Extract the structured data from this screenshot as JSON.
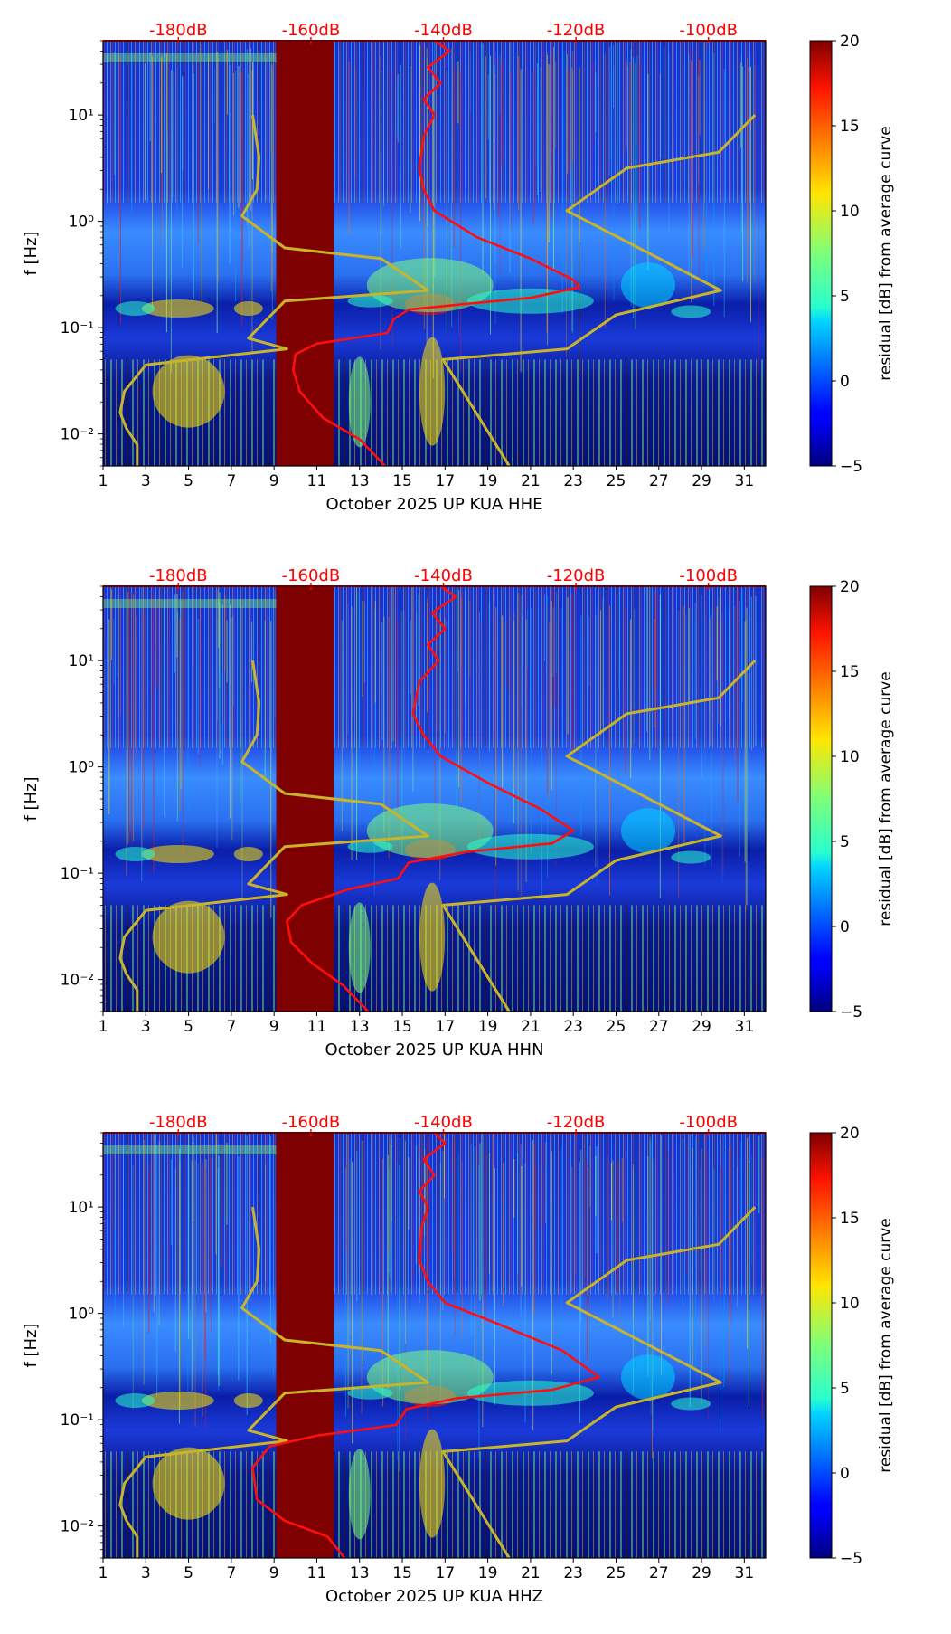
{
  "chart_data": [
    {
      "type": "heatmap",
      "component": "HHE",
      "xlabel": "October 2025 UP KUA  HHE",
      "ylabel": "f [Hz]",
      "x_ticks": [
        "1",
        "3",
        "5",
        "7",
        "9",
        "11",
        "13",
        "15",
        "17",
        "19",
        "21",
        "23",
        "25",
        "27",
        "29",
        "31"
      ],
      "xlim": [
        1,
        32
      ],
      "y_ticks": [
        "10⁻²",
        "10⁻¹",
        "10⁰",
        "10¹"
      ],
      "ylim_hz": [
        0.005,
        50
      ],
      "db_axis_labels": [
        "-180dB",
        "-160dB",
        "-140dB",
        "-120dB",
        "-100dB"
      ],
      "db_axis_values": [
        -180,
        -160,
        -140,
        -120,
        -100
      ],
      "colorbar": {
        "label": "residual [dB] from average curve",
        "ticks": [
          "−5",
          "0",
          "5",
          "10",
          "15",
          "20"
        ],
        "range": [
          -5,
          20
        ]
      },
      "data_gap_days": [
        9.1,
        11.8
      ],
      "red_curve_day_logf": [
        [
          16.5,
          1.7
        ],
        [
          17.2,
          1.6
        ],
        [
          16.2,
          1.45
        ],
        [
          16.8,
          1.3
        ],
        [
          16,
          1.15
        ],
        [
          16.5,
          1
        ],
        [
          16,
          0.8
        ],
        [
          15.8,
          0.5
        ],
        [
          16,
          0.3
        ],
        [
          16.5,
          0.1
        ],
        [
          18.5,
          -0.15
        ],
        [
          21,
          -0.35
        ],
        [
          23,
          -0.55
        ],
        [
          23.3,
          -0.62
        ],
        [
          21,
          -0.72
        ],
        [
          17.8,
          -0.78
        ],
        [
          15.3,
          -0.83
        ],
        [
          14.6,
          -0.92
        ],
        [
          14.3,
          -1.05
        ],
        [
          11,
          -1.15
        ],
        [
          10,
          -1.25
        ],
        [
          9.9,
          -1.4
        ],
        [
          10.2,
          -1.6
        ],
        [
          11.3,
          -1.85
        ],
        [
          13,
          -2.05
        ],
        [
          14.2,
          -2.3
        ]
      ],
      "yellow_curve_day_logf": [
        [
          8,
          1
        ],
        [
          8.3,
          0.6
        ],
        [
          8.2,
          0.3
        ],
        [
          7.5,
          0.05
        ],
        [
          9.5,
          -0.25
        ],
        [
          14,
          -0.35
        ],
        [
          16.2,
          -0.65
        ],
        [
          9.5,
          -0.75
        ],
        [
          7.8,
          -1.1
        ],
        [
          9.6,
          -1.2
        ],
        [
          3,
          -1.35
        ],
        [
          2,
          -1.6
        ],
        [
          1.8,
          -1.8
        ],
        [
          2.1,
          -1.95
        ],
        [
          2.6,
          -2.1
        ],
        [
          2.6,
          -2.3
        ]
      ],
      "yellow_right_day_logf": [
        [
          31.5,
          1
        ],
        [
          29.8,
          0.65
        ],
        [
          25.5,
          0.5
        ],
        [
          22.7,
          0.1
        ],
        [
          29.9,
          -0.65
        ],
        [
          25,
          -0.88
        ],
        [
          22.7,
          -1.2
        ],
        [
          16.9,
          -1.3
        ],
        [
          20,
          -2.3
        ]
      ]
    },
    {
      "type": "heatmap",
      "component": "HHN",
      "xlabel": "October 2025 UP KUA  HHN",
      "ylabel": "f [Hz]",
      "x_ticks": [
        "1",
        "3",
        "5",
        "7",
        "9",
        "11",
        "13",
        "15",
        "17",
        "19",
        "21",
        "23",
        "25",
        "27",
        "29",
        "31"
      ],
      "xlim": [
        1,
        32
      ],
      "y_ticks": [
        "10⁻²",
        "10⁻¹",
        "10⁰",
        "10¹"
      ],
      "ylim_hz": [
        0.005,
        50
      ],
      "db_axis_labels": [
        "-180dB",
        "-160dB",
        "-140dB",
        "-120dB",
        "-100dB"
      ],
      "db_axis_values": [
        -180,
        -160,
        -140,
        -120,
        -100
      ],
      "colorbar": {
        "label": "residual [dB] from average curve",
        "ticks": [
          "−5",
          "0",
          "5",
          "10",
          "15",
          "20"
        ],
        "range": [
          -5,
          20
        ]
      },
      "data_gap_days": [
        9.1,
        11.8
      ],
      "red_curve_day_logf": [
        [
          16.8,
          1.7
        ],
        [
          17.5,
          1.6
        ],
        [
          16.4,
          1.45
        ],
        [
          17,
          1.3
        ],
        [
          16.2,
          1.15
        ],
        [
          16.7,
          1
        ],
        [
          15.8,
          0.8
        ],
        [
          15.5,
          0.5
        ],
        [
          16,
          0.3
        ],
        [
          16.8,
          0.1
        ],
        [
          19,
          -0.15
        ],
        [
          21.5,
          -0.4
        ],
        [
          23,
          -0.6
        ],
        [
          22,
          -0.72
        ],
        [
          18,
          -0.8
        ],
        [
          15.3,
          -0.9
        ],
        [
          14.8,
          -1.05
        ],
        [
          12.5,
          -1.15
        ],
        [
          10.3,
          -1.3
        ],
        [
          9.6,
          -1.45
        ],
        [
          9.8,
          -1.65
        ],
        [
          10.8,
          -1.85
        ],
        [
          12.2,
          -2.05
        ],
        [
          13.4,
          -2.3
        ]
      ],
      "yellow_curve_day_logf": [
        [
          8,
          1
        ],
        [
          8.3,
          0.6
        ],
        [
          8.2,
          0.3
        ],
        [
          7.5,
          0.05
        ],
        [
          9.5,
          -0.25
        ],
        [
          14,
          -0.35
        ],
        [
          16.2,
          -0.65
        ],
        [
          9.5,
          -0.75
        ],
        [
          7.8,
          -1.1
        ],
        [
          9.6,
          -1.2
        ],
        [
          3,
          -1.35
        ],
        [
          2,
          -1.6
        ],
        [
          1.8,
          -1.8
        ],
        [
          2.1,
          -1.95
        ],
        [
          2.6,
          -2.1
        ],
        [
          2.6,
          -2.3
        ]
      ],
      "yellow_right_day_logf": [
        [
          31.5,
          1
        ],
        [
          29.8,
          0.65
        ],
        [
          25.5,
          0.5
        ],
        [
          22.7,
          0.1
        ],
        [
          29.9,
          -0.65
        ],
        [
          25,
          -0.88
        ],
        [
          22.7,
          -1.2
        ],
        [
          16.9,
          -1.3
        ],
        [
          20,
          -2.3
        ]
      ]
    },
    {
      "type": "heatmap",
      "component": "HHZ",
      "xlabel": "October 2025 UP KUA  HHZ",
      "ylabel": "f [Hz]",
      "x_ticks": [
        "1",
        "3",
        "5",
        "7",
        "9",
        "11",
        "13",
        "15",
        "17",
        "19",
        "21",
        "23",
        "25",
        "27",
        "29",
        "31"
      ],
      "xlim": [
        1,
        32
      ],
      "y_ticks": [
        "10⁻²",
        "10⁻¹",
        "10⁰",
        "10¹"
      ],
      "ylim_hz": [
        0.005,
        50
      ],
      "db_axis_labels": [
        "-180dB",
        "-160dB",
        "-140dB",
        "-120dB",
        "-100dB"
      ],
      "db_axis_values": [
        -180,
        -160,
        -140,
        -120,
        -100
      ],
      "colorbar": {
        "label": "residual [dB] from average curve",
        "ticks": [
          "−5",
          "0",
          "5",
          "10",
          "15",
          "20"
        ],
        "range": [
          -5,
          20
        ]
      },
      "data_gap_days": [
        9.1,
        11.8
      ],
      "red_curve_day_logf": [
        [
          16.5,
          1.7
        ],
        [
          17,
          1.6
        ],
        [
          16,
          1.45
        ],
        [
          16.5,
          1.3
        ],
        [
          15.8,
          1.15
        ],
        [
          16.2,
          1
        ],
        [
          15.9,
          0.8
        ],
        [
          15.8,
          0.5
        ],
        [
          16.2,
          0.3
        ],
        [
          17,
          0.1
        ],
        [
          19.5,
          -0.1
        ],
        [
          22.5,
          -0.35
        ],
        [
          24.2,
          -0.6
        ],
        [
          22,
          -0.72
        ],
        [
          17.5,
          -0.8
        ],
        [
          15.2,
          -0.9
        ],
        [
          14.7,
          -1.05
        ],
        [
          11,
          -1.15
        ],
        [
          8.8,
          -1.25
        ],
        [
          8,
          -1.45
        ],
        [
          8.2,
          -1.75
        ],
        [
          9.5,
          -1.95
        ],
        [
          11.5,
          -2.1
        ],
        [
          12.3,
          -2.3
        ]
      ],
      "yellow_curve_day_logf": [
        [
          8,
          1
        ],
        [
          8.3,
          0.6
        ],
        [
          8.2,
          0.3
        ],
        [
          7.5,
          0.05
        ],
        [
          9.5,
          -0.25
        ],
        [
          14,
          -0.35
        ],
        [
          16.2,
          -0.65
        ],
        [
          9.5,
          -0.75
        ],
        [
          7.8,
          -1.1
        ],
        [
          9.6,
          -1.2
        ],
        [
          3,
          -1.35
        ],
        [
          2,
          -1.6
        ],
        [
          1.8,
          -1.8
        ],
        [
          2.1,
          -1.95
        ],
        [
          2.6,
          -2.1
        ],
        [
          2.6,
          -2.3
        ]
      ],
      "yellow_right_day_logf": [
        [
          31.5,
          1
        ],
        [
          29.8,
          0.65
        ],
        [
          25.5,
          0.5
        ],
        [
          22.7,
          0.1
        ],
        [
          29.9,
          -0.65
        ],
        [
          25,
          -0.88
        ],
        [
          22.7,
          -1.2
        ],
        [
          16.9,
          -1.3
        ],
        [
          20,
          -2.3
        ]
      ]
    }
  ]
}
